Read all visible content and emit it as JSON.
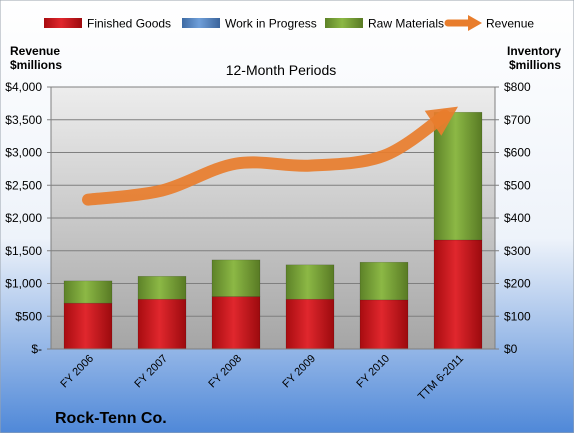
{
  "chart_data": {
    "type": "bar",
    "title": "12-Month Periods",
    "company": "Rock-Tenn Co.",
    "categories": [
      "FY 2006",
      "FY 2007",
      "FY 2008",
      "FY 2009",
      "FY 2010",
      "TTM 6-2011"
    ],
    "left_axis": {
      "label_line1": "Revenue",
      "label_line2": "$millions",
      "range": [
        0,
        4000
      ],
      "ticks": [
        0,
        500,
        1000,
        1500,
        2000,
        2500,
        3000,
        3500,
        4000
      ],
      "tick_labels": [
        "$-",
        "$500",
        "$1,000",
        "$1,500",
        "$2,000",
        "$2,500",
        "$3,000",
        "$3,500",
        "$4,000"
      ]
    },
    "right_axis": {
      "label_line1": "Inventory",
      "label_line2": "$millions",
      "range": [
        0,
        800
      ],
      "ticks": [
        0,
        100,
        200,
        300,
        400,
        500,
        600,
        700,
        800
      ],
      "tick_labels": [
        "$0",
        "$100",
        "$200",
        "$300",
        "$400",
        "$500",
        "$600",
        "$700",
        "$800"
      ]
    },
    "legend": {
      "placement": "top",
      "items": [
        {
          "name": "Finished Goods",
          "kind": "bar"
        },
        {
          "name": "Work in Progress",
          "kind": "bar"
        },
        {
          "name": "Raw Materials",
          "kind": "bar"
        },
        {
          "name": "Revenue",
          "kind": "line"
        }
      ]
    },
    "series": [
      {
        "name": "Finished Goods",
        "axis": "right",
        "stacked": true,
        "color": "#c9141a",
        "values": [
          140,
          152,
          160,
          152,
          150,
          333
        ]
      },
      {
        "name": "Work in Progress",
        "axis": "right",
        "stacked": true,
        "color": "#4f81bd",
        "values": [
          0,
          0,
          0,
          0,
          0,
          0
        ]
      },
      {
        "name": "Raw Materials",
        "axis": "right",
        "stacked": true,
        "color": "#77a032",
        "values": [
          68,
          70,
          112,
          105,
          115,
          390
        ]
      },
      {
        "name": "Revenue",
        "axis": "left",
        "type": "line",
        "color": "#e87d2c",
        "values": [
          2280,
          2420,
          2830,
          2800,
          2950,
          3700
        ]
      }
    ],
    "grid": true
  }
}
